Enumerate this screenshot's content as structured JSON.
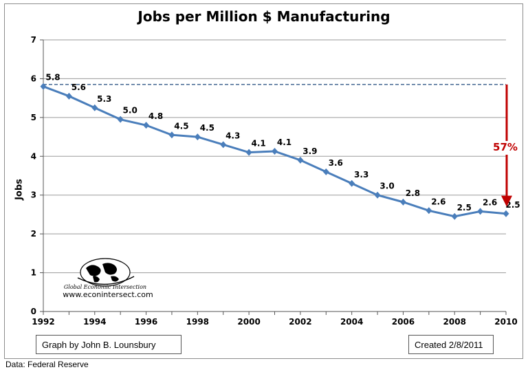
{
  "chart_data": {
    "type": "line",
    "title": "Jobs per Million $ Manufacturing",
    "ylabel": "Jobs",
    "xlabel": "",
    "ylim": [
      0,
      7
    ],
    "xlim": [
      1992,
      2010
    ],
    "y_ticks": [
      0,
      1,
      2,
      3,
      4,
      5,
      6,
      7
    ],
    "x_ticks": [
      1992,
      1994,
      1996,
      1998,
      2000,
      2002,
      2004,
      2006,
      2008,
      2010
    ],
    "grid": "horizontal",
    "series": [
      {
        "color": "#4a7ebb",
        "x": [
          1992,
          1993,
          1994,
          1995,
          1996,
          1997,
          1998,
          1999,
          2000,
          2001,
          2002,
          2003,
          2004,
          2005,
          2006,
          2007,
          2008,
          2009,
          2010
        ],
        "values": [
          5.8,
          5.55,
          5.25,
          4.95,
          4.8,
          4.55,
          4.5,
          4.3,
          4.1,
          4.13,
          3.9,
          3.6,
          3.3,
          3.0,
          2.82,
          2.6,
          2.45,
          2.58,
          2.52
        ],
        "labels": [
          "5.8",
          "5.6",
          "5.3",
          "5.0",
          "4.8",
          "4.5",
          "4.5",
          "4.3",
          "4.1",
          "4.1",
          "3.9",
          "3.6",
          "3.3",
          "3.0",
          "2.8",
          "2.6",
          "2.5",
          "2.6",
          "2.5"
        ]
      }
    ],
    "reference_line": {
      "y": 5.85,
      "style": "dashed",
      "color": "#1f497d"
    },
    "annotation": {
      "text": "57%",
      "color": "#c00000",
      "from_y": 5.85,
      "to_y": 2.7,
      "x": 2010
    }
  },
  "logo": {
    "line1": "Global Economic Intersection",
    "url": "www.econintersect.com"
  },
  "footer": {
    "credit": "Graph by John B. Lounsbury",
    "created": "Created 2/8/2011",
    "source": "Data:  Federal Reserve"
  }
}
